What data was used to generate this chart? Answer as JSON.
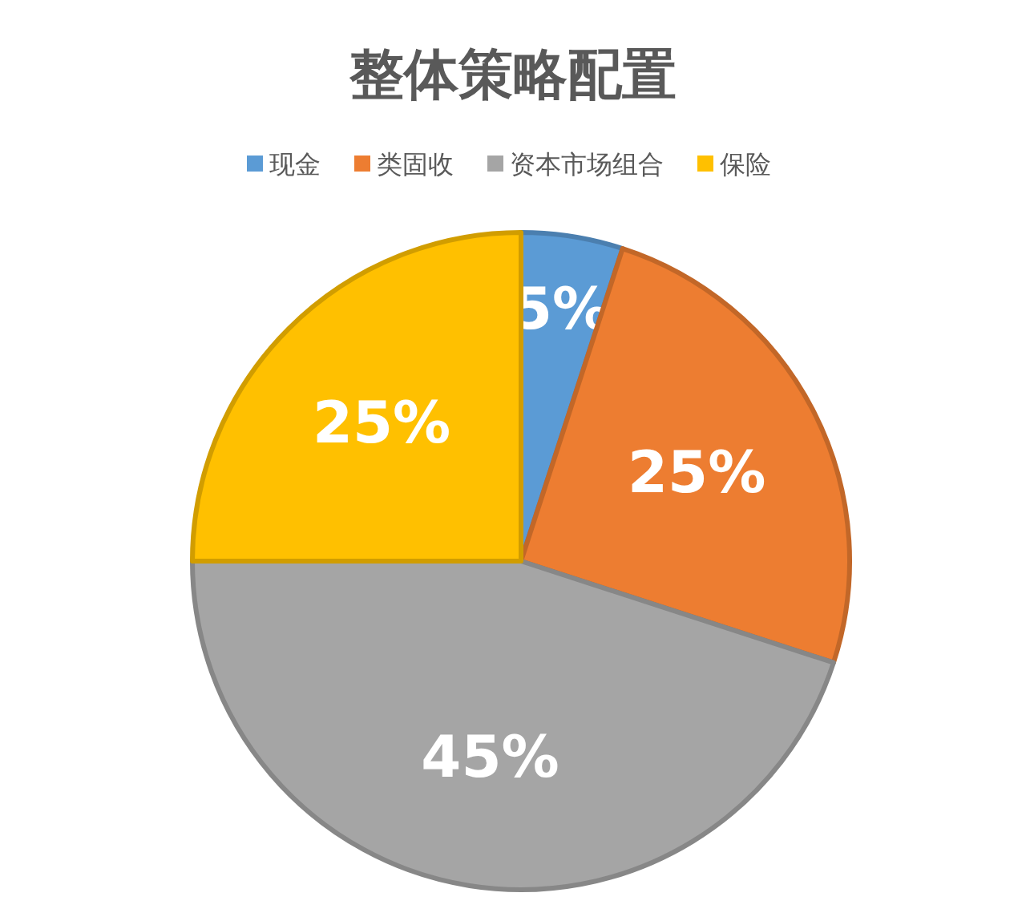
{
  "chart_data": {
    "type": "pie",
    "title": "整体策略配置",
    "categories": [
      "现金",
      "类固收",
      "资本市场组合",
      "保险"
    ],
    "values": [
      5,
      25,
      45,
      25
    ],
    "colors": [
      "#5b9bd5",
      "#ed7d31",
      "#a5a5a5",
      "#ffc000"
    ],
    "value_labels": [
      "5%",
      "25%",
      "45%",
      "25%"
    ],
    "legend": "top"
  }
}
